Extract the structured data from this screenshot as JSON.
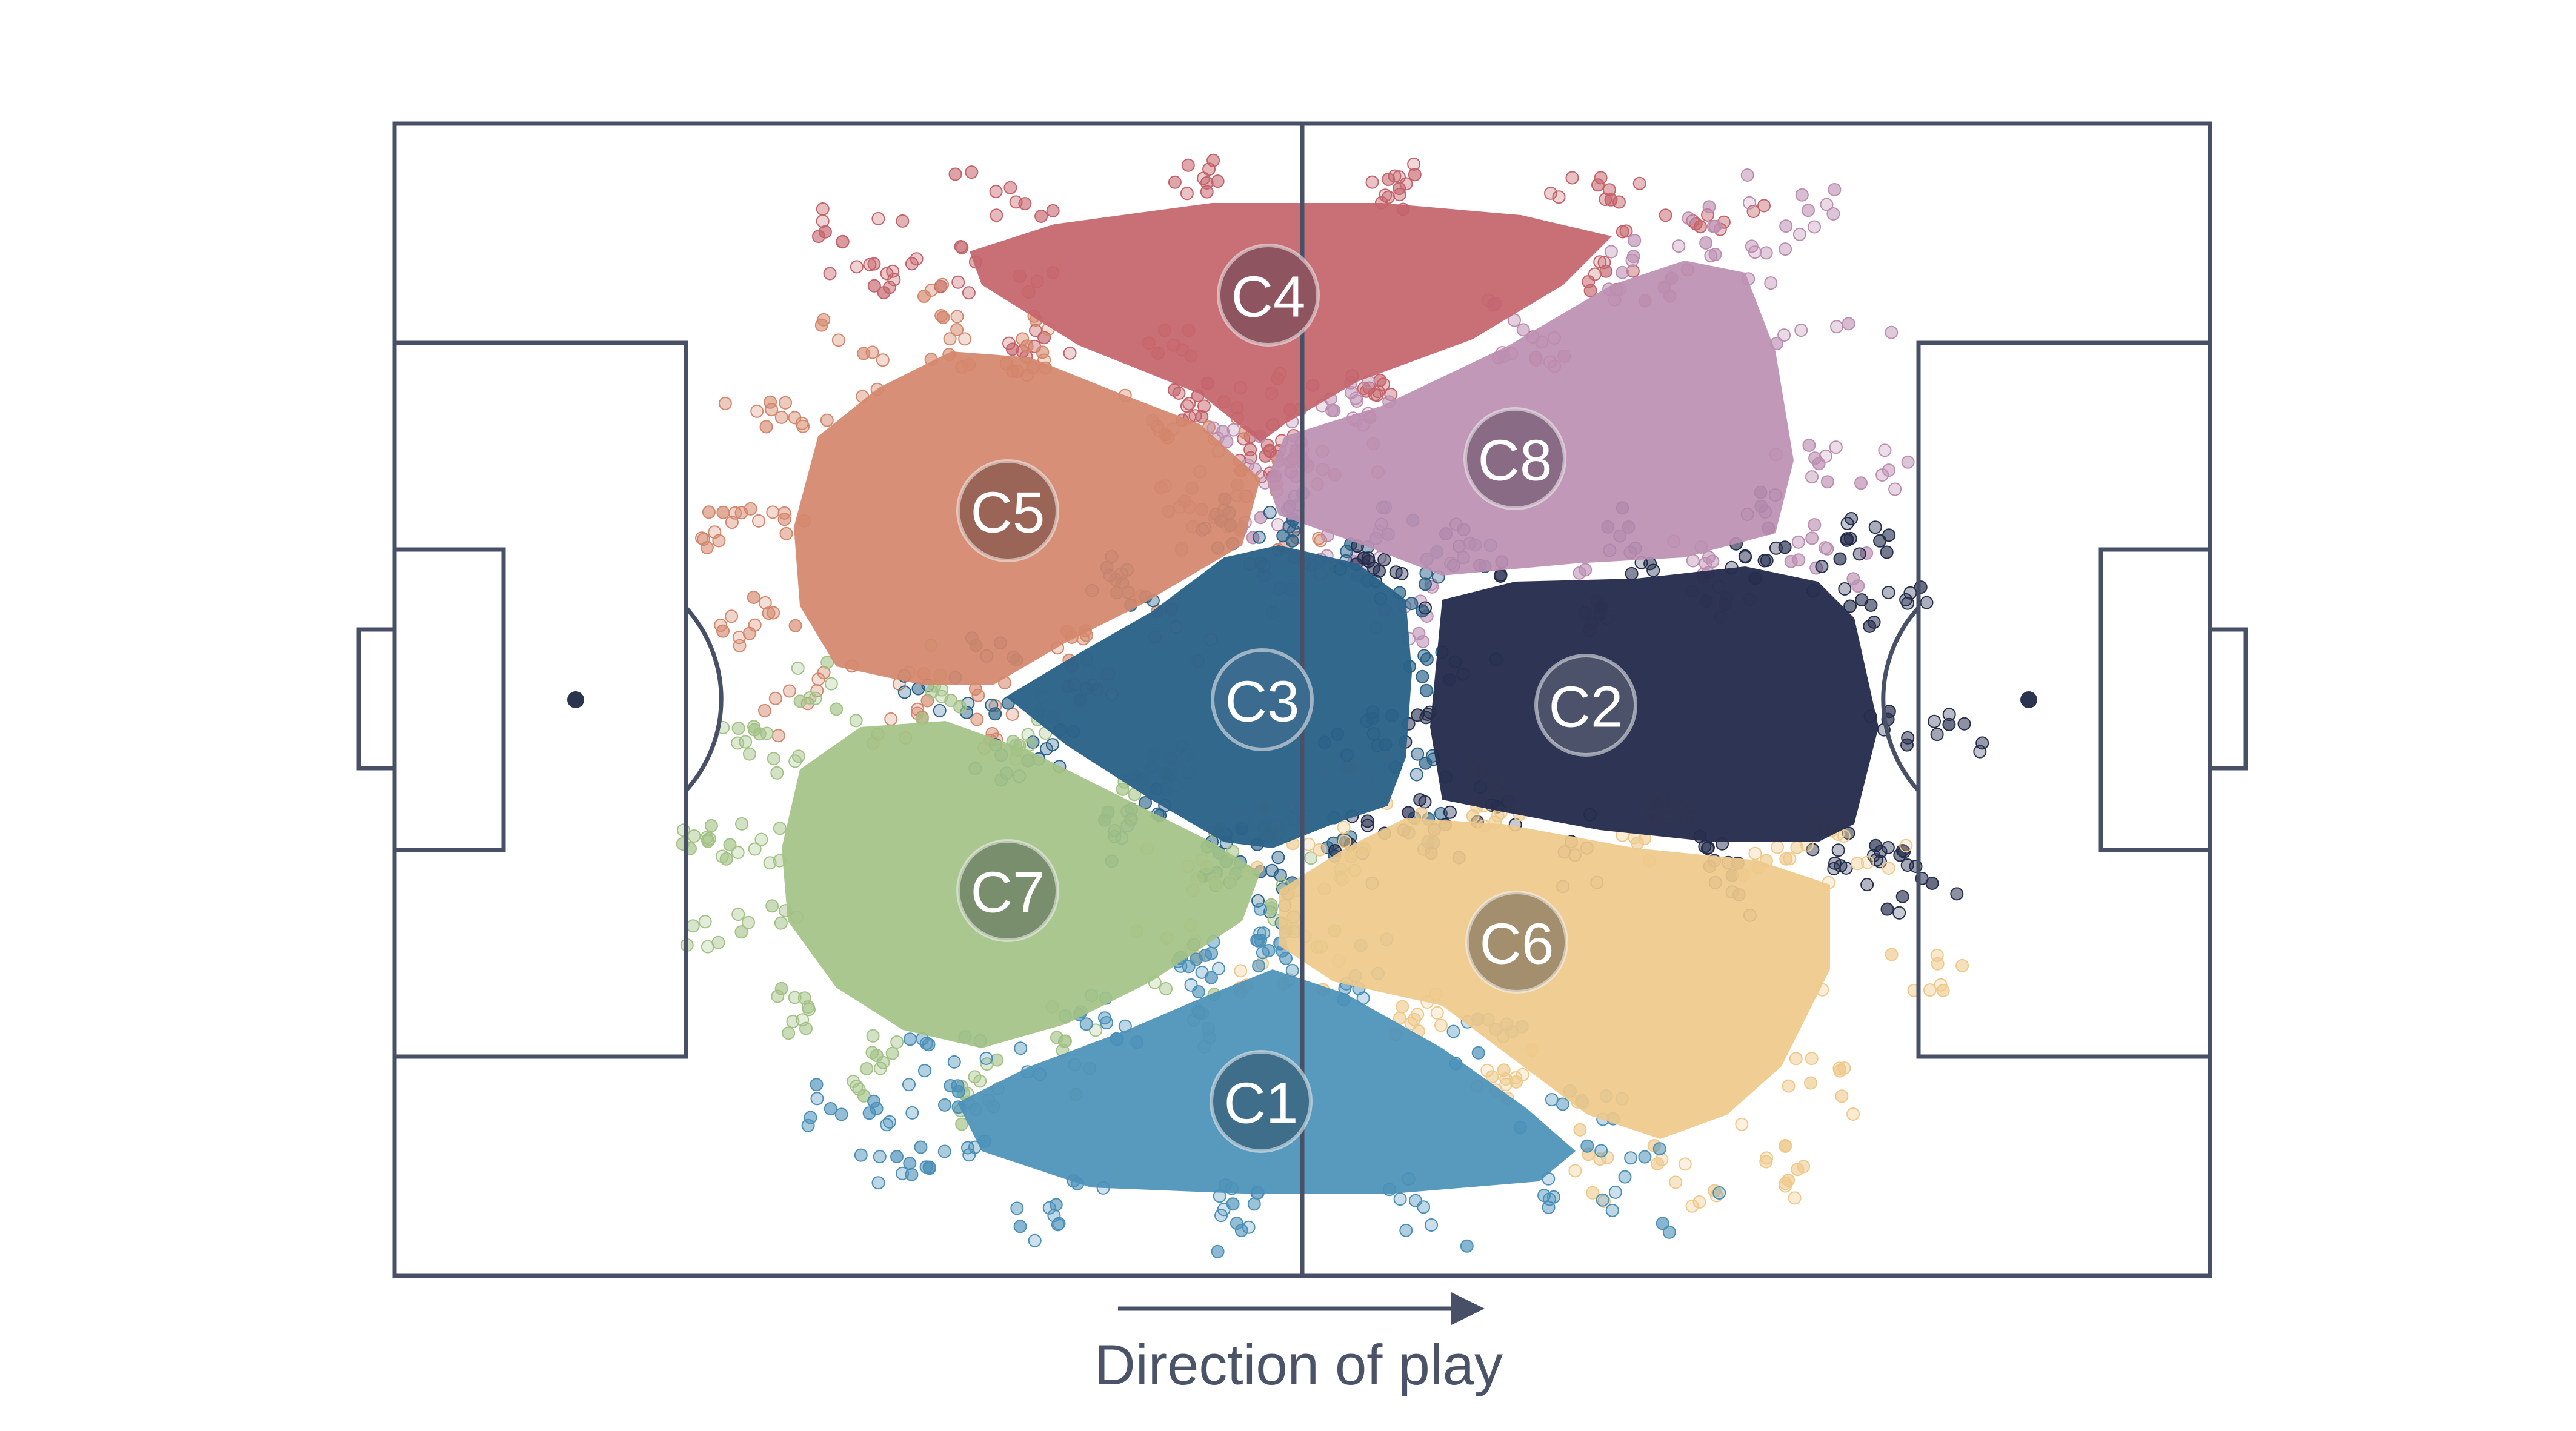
{
  "diagram": {
    "direction_label": "Direction of play",
    "line_color": "#475066",
    "clusters": [
      {
        "id": "C1",
        "label": "C1",
        "color": "#4a90b8",
        "badge_color": "#3f6e8a"
      },
      {
        "id": "C2",
        "label": "C2",
        "color": "#252d4d",
        "badge_color": "#4b5269"
      },
      {
        "id": "C3",
        "label": "C3",
        "color": "#2b6288",
        "badge_color": "#3b6c90"
      },
      {
        "id": "C4",
        "label": "C4",
        "color": "#c4636a",
        "badge_color": "#8e5460"
      },
      {
        "id": "C5",
        "label": "C5",
        "color": "#d4876b",
        "badge_color": "#9a6556"
      },
      {
        "id": "C6",
        "label": "C6",
        "color": "#eec98a",
        "badge_color": "#a38f6e"
      },
      {
        "id": "C7",
        "label": "C7",
        "color": "#a3c286",
        "badge_color": "#798e6c"
      },
      {
        "id": "C8",
        "label": "C8",
        "color": "#bc8fb2",
        "badge_color": "#8a6b86"
      }
    ]
  }
}
